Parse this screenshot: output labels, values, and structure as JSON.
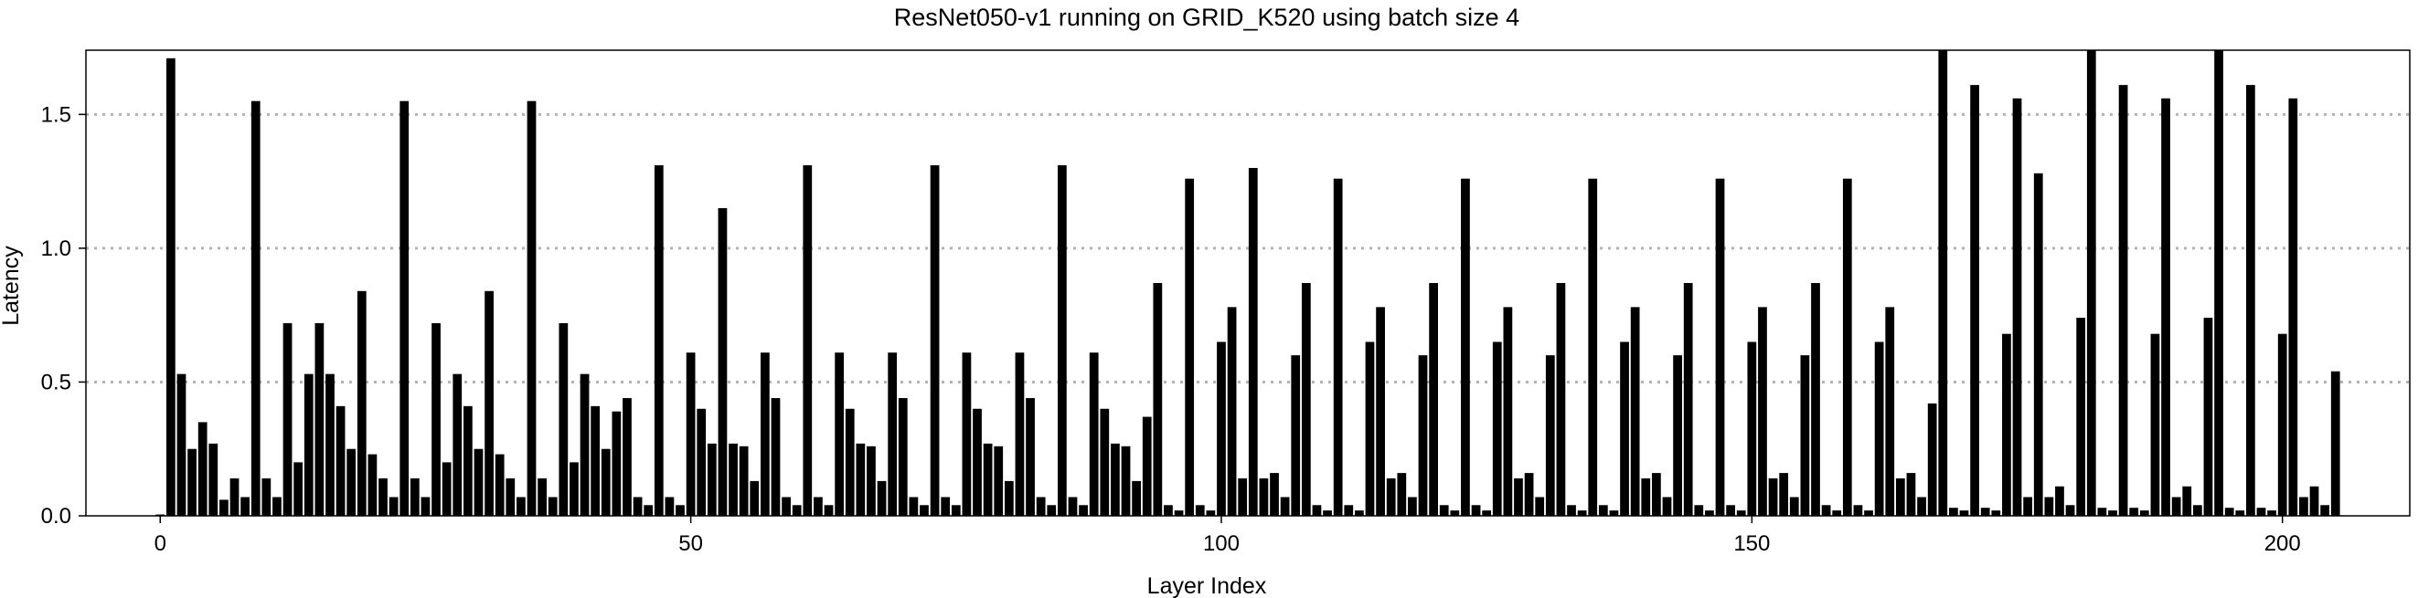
{
  "chart_data": {
    "type": "bar",
    "title": "ResNet050-v1 running on GRID_K520 using batch size 4",
    "xlabel": "Layer Index",
    "ylabel": "Latency",
    "xlim": [
      -7,
      212
    ],
    "ylim": [
      0,
      1.74
    ],
    "xticks": [
      0,
      50,
      100,
      150,
      200
    ],
    "xtick_labels": [
      "0",
      "50",
      "100",
      "150",
      "200"
    ],
    "yticks": [
      0.0,
      0.5,
      1.0,
      1.5
    ],
    "ytick_labels": [
      "0.0",
      "0.5",
      "1.0",
      "1.5"
    ],
    "grid": "horizontal dotted",
    "legend": "none",
    "bar_color": "#000000",
    "grid_color": "#b3b3b3",
    "x": [
      0,
      1,
      2,
      3,
      4,
      5,
      6,
      7,
      8,
      9,
      10,
      11,
      12,
      13,
      14,
      15,
      16,
      17,
      18,
      19,
      20,
      21,
      22,
      23,
      24,
      25,
      26,
      27,
      28,
      29,
      30,
      31,
      32,
      33,
      34,
      35,
      36,
      37,
      38,
      39,
      40,
      41,
      42,
      43,
      44,
      45,
      46,
      47,
      48,
      49,
      50,
      51,
      52,
      53,
      54,
      55,
      56,
      57,
      58,
      59,
      60,
      61,
      62,
      63,
      64,
      65,
      66,
      67,
      68,
      69,
      70,
      71,
      72,
      73,
      74,
      75,
      76,
      77,
      78,
      79,
      80,
      81,
      82,
      83,
      84,
      85,
      86,
      87,
      88,
      89,
      90,
      91,
      92,
      93,
      94,
      95,
      96,
      97,
      98,
      99,
      100,
      101,
      102,
      103,
      104,
      105,
      106,
      107,
      108,
      109,
      110,
      111,
      112,
      113,
      114,
      115,
      116,
      117,
      118,
      119,
      120,
      121,
      122,
      123,
      124,
      125,
      126,
      127,
      128,
      129,
      130,
      131,
      132,
      133,
      134,
      135,
      136,
      137,
      138,
      139,
      140,
      141,
      142,
      143,
      144,
      145,
      146,
      147,
      148,
      149,
      150,
      151,
      152,
      153,
      154,
      155,
      156,
      157,
      158,
      159,
      160,
      161,
      162,
      163,
      164,
      165,
      166,
      167,
      168,
      169,
      170,
      171,
      172,
      173,
      174,
      175,
      176,
      177,
      178,
      179,
      180,
      181,
      182,
      183,
      184,
      185,
      186,
      187,
      188,
      189,
      190,
      191,
      192,
      193,
      194,
      195,
      196,
      197,
      198,
      199,
      200,
      201,
      202,
      203,
      204,
      205
    ],
    "values": [
      0.005,
      1.71,
      0.53,
      0.25,
      0.35,
      0.27,
      0.06,
      0.14,
      0.07,
      1.55,
      0.14,
      0.07,
      0.72,
      0.2,
      0.53,
      0.72,
      0.53,
      0.41,
      0.25,
      0.84,
      0.23,
      0.14,
      0.07,
      1.55,
      0.14,
      0.07,
      0.72,
      0.2,
      0.53,
      0.41,
      0.25,
      0.84,
      0.23,
      0.14,
      0.07,
      1.55,
      0.14,
      0.07,
      0.72,
      0.2,
      0.53,
      0.41,
      0.25,
      0.39,
      0.44,
      0.07,
      0.04,
      1.31,
      0.07,
      0.04,
      0.61,
      0.4,
      0.27,
      1.15,
      0.27,
      0.26,
      0.13,
      0.61,
      0.44,
      0.07,
      0.04,
      1.31,
      0.07,
      0.04,
      0.61,
      0.4,
      0.27,
      0.26,
      0.13,
      0.61,
      0.44,
      0.07,
      0.04,
      1.31,
      0.07,
      0.04,
      0.61,
      0.4,
      0.27,
      0.26,
      0.13,
      0.61,
      0.44,
      0.07,
      0.04,
      1.31,
      0.07,
      0.04,
      0.61,
      0.4,
      0.27,
      0.26,
      0.13,
      0.37,
      0.87,
      0.04,
      0.02,
      1.26,
      0.04,
      0.02,
      0.65,
      0.78,
      0.14,
      1.3,
      0.14,
      0.16,
      0.07,
      0.6,
      0.87,
      0.04,
      0.02,
      1.26,
      0.04,
      0.02,
      0.65,
      0.78,
      0.14,
      0.16,
      0.07,
      0.6,
      0.87,
      0.04,
      0.02,
      1.26,
      0.04,
      0.02,
      0.65,
      0.78,
      0.14,
      0.16,
      0.07,
      0.6,
      0.87,
      0.04,
      0.02,
      1.26,
      0.04,
      0.02,
      0.65,
      0.78,
      0.14,
      0.16,
      0.07,
      0.6,
      0.87,
      0.04,
      0.02,
      1.26,
      0.04,
      0.02,
      0.65,
      0.78,
      0.14,
      0.16,
      0.07,
      0.6,
      0.87,
      0.04,
      0.02,
      1.26,
      0.04,
      0.02,
      0.65,
      0.78,
      0.14,
      0.16,
      0.07,
      0.42,
      1.74,
      0.03,
      0.02,
      1.61,
      0.03,
      0.02,
      0.68,
      1.56,
      0.07,
      1.28,
      0.07,
      0.11,
      0.04,
      0.74,
      1.74,
      0.03,
      0.02,
      1.61,
      0.03,
      0.02,
      0.68,
      1.56,
      0.07,
      0.11,
      0.04,
      0.74,
      1.74,
      0.03,
      0.02,
      1.61,
      0.03,
      0.02,
      0.68,
      1.56,
      0.07,
      0.11,
      0.04,
      0.54
    ]
  }
}
